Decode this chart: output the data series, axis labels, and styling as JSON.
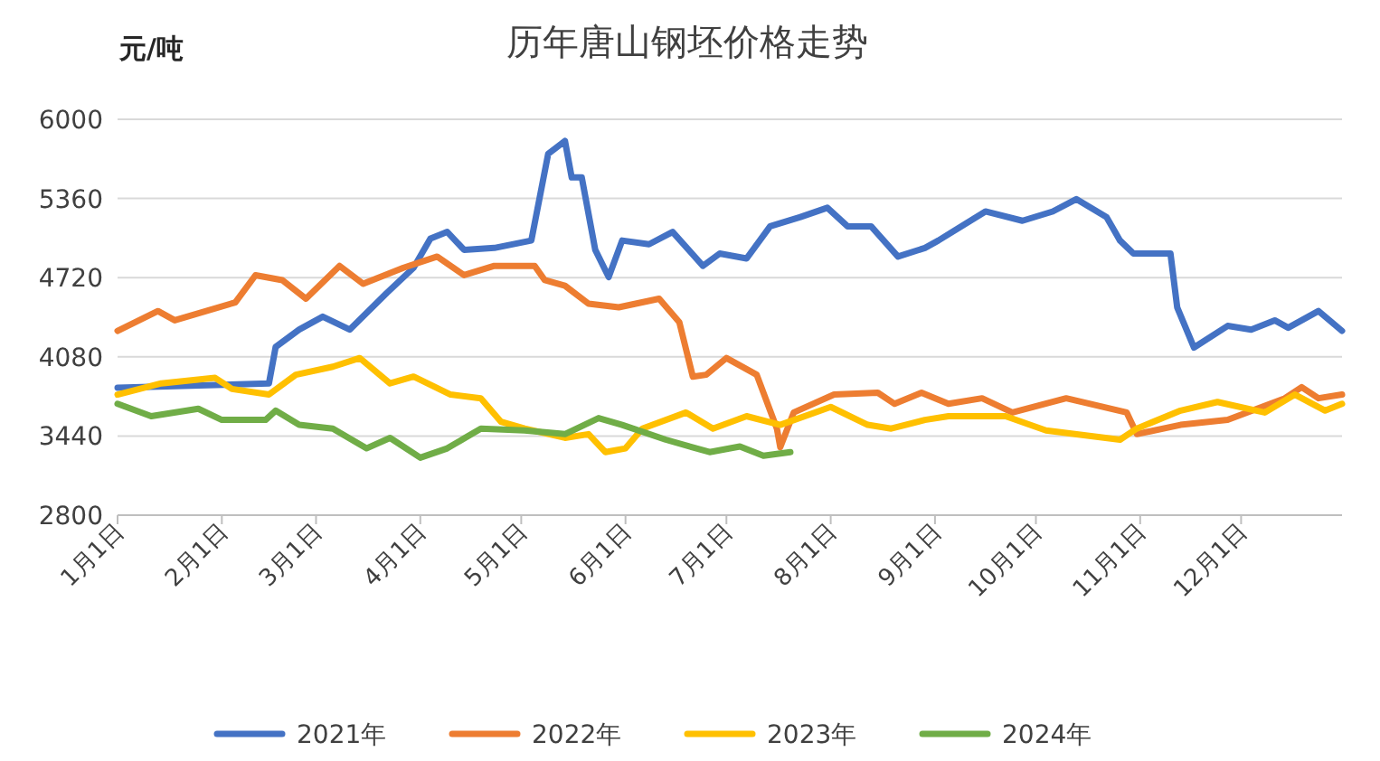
{
  "chart_data": {
    "type": "line",
    "title": "历年唐山钢坯价格走势",
    "ylabel": "元/吨",
    "xlim": [
      "--01-01",
      "--12-31"
    ],
    "xticks": [
      {
        "value": "--01-01",
        "label": "1月1日"
      },
      {
        "value": "--02-01",
        "label": "2月1日"
      },
      {
        "value": "--03-01",
        "label": "3月1日"
      },
      {
        "value": "--04-01",
        "label": "4月1日"
      },
      {
        "value": "--05-01",
        "label": "5月1日"
      },
      {
        "value": "--06-01",
        "label": "6月1日"
      },
      {
        "value": "--07-01",
        "label": "7月1日"
      },
      {
        "value": "--08-01",
        "label": "8月1日"
      },
      {
        "value": "--09-01",
        "label": "9月1日"
      },
      {
        "value": "--10-01",
        "label": "10月1日"
      },
      {
        "value": "--11-01",
        "label": "11月1日"
      },
      {
        "value": "--12-01",
        "label": "12月1日"
      }
    ],
    "ylim": [
      2800,
      6000
    ],
    "yticks": [
      2800,
      3440,
      4080,
      4720,
      5360,
      6000
    ],
    "grid": "y",
    "legend": "bottom",
    "line_style": "solid",
    "series": [
      {
        "name": "2021年",
        "color": "#4472c4",
        "x": [
          "--01-01",
          "--02-15",
          "--02-17",
          "--02-24",
          "--03-03",
          "--03-11",
          "--03-22",
          "--03-30",
          "--04-04",
          "--04-09",
          "--04-14",
          "--04-23",
          "--05-04",
          "--05-09",
          "--05-14",
          "--05-16",
          "--05-19",
          "--05-23",
          "--05-27",
          "--05-31",
          "--06-08",
          "--06-15",
          "--06-24",
          "--06-29",
          "--07-07",
          "--07-14",
          "--07-23",
          "--07-31",
          "--08-06",
          "--08-13",
          "--08-21",
          "--08-29",
          "--09-02",
          "--09-16",
          "--09-27",
          "--10-06",
          "--10-13",
          "--10-22",
          "--10-26",
          "--10-30",
          "--11-10",
          "--11-12",
          "--11-17",
          "--11-27",
          "--12-04",
          "--12-11",
          "--12-15",
          "--12-24",
          "--12-31"
        ],
        "values": [
          3830,
          3865,
          4160,
          4300,
          4405,
          4300,
          4595,
          4800,
          5035,
          5090,
          4945,
          4960,
          5020,
          5720,
          5825,
          5530,
          5530,
          4945,
          4725,
          5020,
          4990,
          5090,
          4815,
          4915,
          4875,
          5135,
          5210,
          5285,
          5135,
          5135,
          4890,
          4960,
          5020,
          5255,
          5180,
          5255,
          5355,
          5210,
          5020,
          4915,
          4915,
          4480,
          4155,
          4330,
          4300,
          4375,
          4315,
          4450,
          4290
        ]
      },
      {
        "name": "2022年",
        "color": "#ed7d31",
        "x": [
          "--01-01",
          "--01-13",
          "--01-18",
          "--02-05",
          "--02-11",
          "--02-19",
          "--02-26",
          "--03-08",
          "--03-15",
          "--03-27",
          "--04-06",
          "--04-14",
          "--04-23",
          "--05-05",
          "--05-08",
          "--05-14",
          "--05-21",
          "--05-30",
          "--06-11",
          "--06-17",
          "--06-21",
          "--06-25",
          "--07-01",
          "--07-10",
          "--07-16",
          "--07-17",
          "--07-21",
          "--08-02",
          "--08-15",
          "--08-20",
          "--08-28",
          "--09-05",
          "--09-15",
          "--09-24",
          "--10-10",
          "--10-28",
          "--10-31",
          "--11-13",
          "--11-27",
          "--12-14",
          "--12-19",
          "--12-24",
          "--12-31"
        ],
        "values": [
          4290,
          4450,
          4375,
          4520,
          4740,
          4700,
          4550,
          4815,
          4670,
          4800,
          4890,
          4740,
          4815,
          4815,
          4700,
          4655,
          4510,
          4480,
          4550,
          4360,
          3920,
          3935,
          4070,
          3935,
          3500,
          3350,
          3630,
          3775,
          3790,
          3700,
          3790,
          3700,
          3745,
          3630,
          3745,
          3630,
          3455,
          3530,
          3570,
          3745,
          3835,
          3745,
          3775
        ]
      },
      {
        "name": "2023年",
        "color": "#ffc000",
        "x": [
          "--01-01",
          "--01-14",
          "--01-30",
          "--02-04",
          "--02-15",
          "--02-23",
          "--03-06",
          "--03-14",
          "--03-23",
          "--03-30",
          "--04-10",
          "--04-19",
          "--04-25",
          "--05-02",
          "--05-14",
          "--05-21",
          "--05-26",
          "--06-01",
          "--06-06",
          "--06-19",
          "--06-27",
          "--07-07",
          "--07-17",
          "--08-01",
          "--08-12",
          "--08-19",
          "--08-29",
          "--09-05",
          "--09-22",
          "--10-04",
          "--10-26",
          "--10-31",
          "--11-13",
          "--11-24",
          "--12-08",
          "--12-17",
          "--12-26",
          "--12-31"
        ],
        "values": [
          3775,
          3865,
          3910,
          3820,
          3775,
          3935,
          4000,
          4070,
          3865,
          3920,
          3775,
          3745,
          3555,
          3500,
          3425,
          3455,
          3310,
          3340,
          3500,
          3630,
          3500,
          3600,
          3530,
          3675,
          3530,
          3500,
          3570,
          3600,
          3600,
          3485,
          3410,
          3500,
          3645,
          3715,
          3630,
          3775,
          3645,
          3700
        ]
      },
      {
        "name": "2024年",
        "color": "#70ad47",
        "x": [
          "--01-01",
          "--01-11",
          "--01-25",
          "--02-01",
          "--02-14",
          "--02-17",
          "--02-24",
          "--03-06",
          "--03-16",
          "--03-23",
          "--04-01",
          "--04-09",
          "--04-19",
          "--05-02",
          "--05-14",
          "--05-24",
          "--05-31",
          "--06-13",
          "--06-26",
          "--07-05",
          "--07-12",
          "--07-20"
        ],
        "values": [
          3700,
          3600,
          3660,
          3570,
          3570,
          3645,
          3530,
          3500,
          3340,
          3425,
          3265,
          3340,
          3500,
          3485,
          3455,
          3585,
          3530,
          3410,
          3310,
          3355,
          3280,
          3310
        ]
      }
    ]
  }
}
